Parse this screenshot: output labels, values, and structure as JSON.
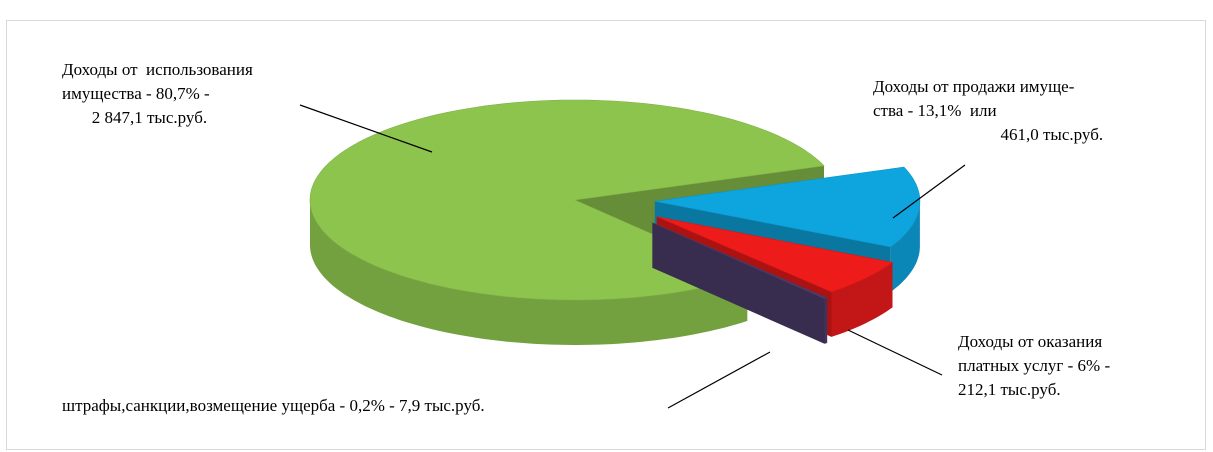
{
  "chart_data": {
    "type": "pie",
    "values": [
      80.7,
      13.1,
      6,
      0.2
    ],
    "value_labels": [
      "Доходы от  использования\nимущества - 80,7% -\n       2 847,1 тыс.руб.",
      "Доходы от продажи имуще-\nства - 13,1%  или\n                              461,0 тыс.руб.",
      "Доходы от оказания\nплатных услуг - 6% -\n212,1 тыс.руб.",
      "штрафы,санкции,возмещение ущерба - 0,2% - 7,9 тыс.руб."
    ],
    "colors": [
      "#8dc44e",
      "#0ea5df",
      "#ee1b1b",
      "#4e3d6e"
    ]
  }
}
